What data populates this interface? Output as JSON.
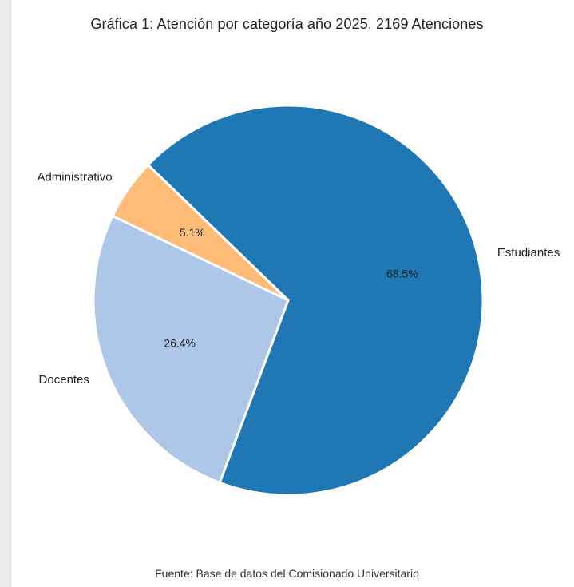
{
  "chart_data": {
    "type": "pie",
    "title": "Gráfica 1: Atención por categoría año 2025, 2169 Atenciones",
    "source": "Fuente: Base de datos del Comisionado Universitario",
    "slices": [
      {
        "label": "Estudiantes",
        "value": 68.5,
        "pct_label": "68.5%",
        "color": "#1f77b4"
      },
      {
        "label": "Docentes",
        "value": 26.4,
        "pct_label": "26.4%",
        "color": "#aec7e8"
      },
      {
        "label": "Administrativo",
        "value": 5.1,
        "pct_label": "5.1%",
        "color": "#ffbb78"
      }
    ],
    "start_angle_deg": 136,
    "direction": "clockwise",
    "legend": "none"
  }
}
